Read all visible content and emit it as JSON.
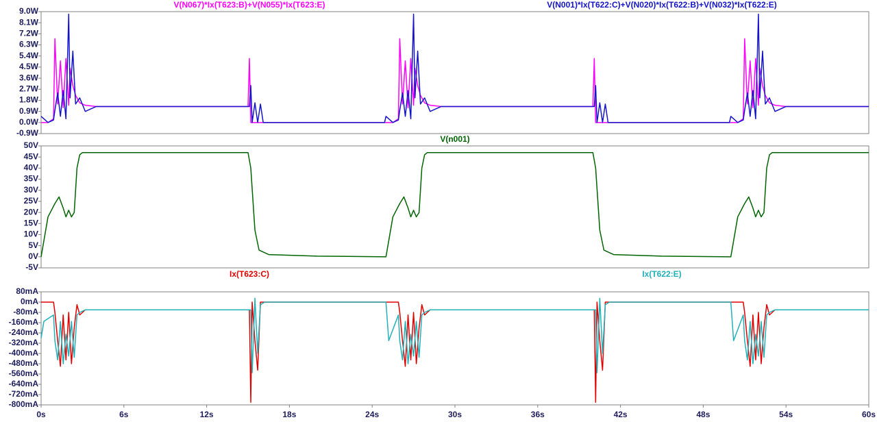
{
  "chart_data": [
    {
      "type": "line",
      "x": [
        0,
        0.5,
        0.9,
        1,
        1.2,
        1.4,
        1.6,
        1.8,
        2,
        2.1,
        2.3,
        2.5,
        2.8,
        3.2,
        4,
        15,
        15.1,
        15.2,
        15.3,
        15.5,
        15.7,
        15.9,
        16.1,
        24.9,
        25,
        25.5,
        25.9,
        26,
        26.2,
        26.4,
        26.6,
        26.8,
        27,
        27.1,
        27.3,
        27.5,
        27.8,
        28.2,
        29,
        40,
        40.1,
        40.2,
        40.3,
        40.5,
        40.7,
        40.9,
        41.1,
        49.9,
        50,
        50.5,
        50.9,
        51,
        51.2,
        51.4,
        51.6,
        51.8,
        52,
        52.1,
        52.3,
        52.5,
        52.8,
        53.2,
        54,
        60
      ],
      "series": [
        {
          "name": "V(N067)*Ix(T623:B)+V(N055)*Ix(T623:E)",
          "color": "#ff00ff",
          "values": [
            0,
            0,
            0.3,
            6.8,
            1.5,
            5.0,
            1.2,
            5.2,
            1.4,
            4.4,
            3.0,
            2.2,
            1.6,
            1.4,
            1.3,
            1.3,
            5.2,
            0,
            0,
            0,
            0,
            0,
            0,
            0,
            0,
            0,
            0.3,
            6.8,
            1.5,
            5.0,
            1.2,
            5.2,
            1.4,
            4.4,
            3.0,
            2.2,
            1.6,
            1.4,
            1.3,
            1.3,
            5.2,
            0,
            0,
            0,
            0,
            0,
            0,
            0,
            0,
            0,
            0.3,
            6.8,
            1.5,
            5.0,
            1.2,
            5.2,
            1.4,
            4.4,
            3.0,
            2.2,
            1.6,
            1.4,
            1.3,
            1.3
          ]
        },
        {
          "name": "V(N001)*Ix(T622:C)+V(N020)*Ix(T622:B)+V(N032)*Ix(T622:E)",
          "color": "#1414c8",
          "values": [
            0.5,
            0,
            0.2,
            1.0,
            2.4,
            0.5,
            2.6,
            0.3,
            8.8,
            2.0,
            5.8,
            1.5,
            2.0,
            0.9,
            1.3,
            1.3,
            1.3,
            3.0,
            0,
            1.6,
            0,
            1.5,
            0,
            0,
            0.5,
            0,
            0.2,
            1.0,
            2.4,
            0.5,
            2.6,
            0.3,
            8.8,
            2.0,
            5.8,
            1.5,
            2.0,
            0.9,
            1.3,
            1.3,
            1.3,
            3.0,
            0,
            1.6,
            0,
            1.5,
            0,
            0,
            0.5,
            0,
            0.2,
            1.0,
            2.4,
            0.5,
            2.6,
            0.3,
            8.8,
            2.0,
            5.8,
            1.5,
            2.0,
            0.9,
            1.3,
            1.3
          ]
        }
      ],
      "xlim": [
        0,
        60
      ],
      "ylim": [
        -0.9,
        9.0
      ],
      "yticks": [
        {
          "value": -0.9,
          "label": "-0.9W"
        },
        {
          "value": 0,
          "label": "0.0W"
        },
        {
          "value": 0.9,
          "label": "0.9W"
        },
        {
          "value": 1.8,
          "label": "1.8W"
        },
        {
          "value": 2.7,
          "label": "2.7W"
        },
        {
          "value": 3.6,
          "label": "3.6W"
        },
        {
          "value": 4.5,
          "label": "4.5W"
        },
        {
          "value": 5.4,
          "label": "5.4W"
        },
        {
          "value": 6.3,
          "label": "6.3W"
        },
        {
          "value": 7.2,
          "label": "7.2W"
        },
        {
          "value": 8.1,
          "label": "8.1W"
        },
        {
          "value": 9.0,
          "label": "9.0W"
        }
      ]
    },
    {
      "type": "line",
      "x": [
        0,
        0.5,
        1,
        1.3,
        1.6,
        1.8,
        2,
        2.2,
        2.4,
        2.6,
        2.8,
        3,
        15,
        15.2,
        15.5,
        15.8,
        16.5,
        20,
        25,
        25.5,
        26,
        26.3,
        26.6,
        26.8,
        27,
        27.2,
        27.4,
        27.6,
        27.8,
        28,
        40,
        40.2,
        40.5,
        40.8,
        41.5,
        45,
        50,
        50.5,
        51,
        51.3,
        51.6,
        51.8,
        52,
        52.2,
        52.4,
        52.6,
        52.8,
        53,
        60
      ],
      "series": [
        {
          "name": "V(n001)",
          "color": "#006400",
          "values": [
            0,
            18,
            24,
            27,
            22,
            18,
            21,
            18,
            20,
            40,
            46,
            47,
            47,
            40,
            12,
            3,
            1,
            0.3,
            0,
            18,
            24,
            27,
            22,
            18,
            21,
            18,
            20,
            40,
            46,
            47,
            47,
            40,
            12,
            3,
            1,
            0.3,
            0,
            18,
            24,
            27,
            22,
            18,
            21,
            18,
            20,
            40,
            46,
            47,
            47
          ]
        }
      ],
      "xlim": [
        0,
        60
      ],
      "ylim": [
        -5,
        50
      ],
      "yticks": [
        {
          "value": -5,
          "label": "-5V"
        },
        {
          "value": 0,
          "label": "0V"
        },
        {
          "value": 5,
          "label": "5V"
        },
        {
          "value": 10,
          "label": "10V"
        },
        {
          "value": 15,
          "label": "15V"
        },
        {
          "value": 20,
          "label": "20V"
        },
        {
          "value": 25,
          "label": "25V"
        },
        {
          "value": 30,
          "label": "30V"
        },
        {
          "value": 35,
          "label": "35V"
        },
        {
          "value": 40,
          "label": "40V"
        },
        {
          "value": 45,
          "label": "45V"
        },
        {
          "value": 50,
          "label": "50V"
        }
      ]
    },
    {
      "type": "line",
      "x": [
        0,
        0.2,
        0.9,
        1,
        1.2,
        1.4,
        1.6,
        1.8,
        2,
        2.2,
        2.4,
        2.6,
        2.8,
        3.2,
        4,
        15,
        15.1,
        15.2,
        15.3,
        15.5,
        15.7,
        15.9,
        16.2,
        24.9,
        25,
        25.2,
        25.9,
        26,
        26.2,
        26.4,
        26.6,
        26.8,
        27,
        27.2,
        27.4,
        27.6,
        27.8,
        28.2,
        29,
        40,
        40.1,
        40.2,
        40.3,
        40.5,
        40.7,
        40.9,
        41.2,
        49.9,
        50,
        50.2,
        50.9,
        51,
        51.2,
        51.4,
        51.6,
        51.8,
        52,
        52.2,
        52.4,
        52.6,
        52.8,
        53.2,
        54,
        60
      ],
      "series": [
        {
          "name": "Ix(T623:C)",
          "color": "#e00000",
          "values": [
            0,
            0,
            0,
            -80,
            -300,
            -500,
            -100,
            -450,
            -80,
            -480,
            -200,
            -20,
            -100,
            -60,
            -60,
            -60,
            -60,
            -780,
            0,
            -300,
            -530,
            0,
            0,
            0,
            0,
            0,
            0,
            -80,
            -300,
            -500,
            -100,
            -450,
            -80,
            -480,
            -200,
            -20,
            -100,
            -60,
            -60,
            -60,
            -60,
            -780,
            0,
            -300,
            -530,
            0,
            0,
            0,
            0,
            0,
            0,
            -80,
            -300,
            -500,
            -100,
            -450,
            -80,
            -480,
            -200,
            -20,
            -100,
            -60,
            -60,
            -60
          ]
        },
        {
          "name": "Ix(T622:E)",
          "color": "#20b0b8",
          "values": [
            -280,
            -150,
            -100,
            -300,
            -450,
            -150,
            -480,
            -250,
            -420,
            -150,
            -430,
            -100,
            -80,
            -60,
            -60,
            -60,
            -60,
            -60,
            -550,
            30,
            -400,
            -20,
            0,
            0,
            0,
            -300,
            -100,
            -300,
            -450,
            -150,
            -480,
            -250,
            -420,
            -150,
            -430,
            -100,
            -80,
            -60,
            -60,
            -60,
            -60,
            -60,
            -550,
            30,
            -400,
            -20,
            0,
            0,
            0,
            -300,
            -100,
            -300,
            -450,
            -150,
            -480,
            -250,
            -420,
            -150,
            -430,
            -100,
            -80,
            -60,
            -60,
            -60
          ]
        }
      ],
      "xlim": [
        0,
        60
      ],
      "ylim": [
        -800,
        80
      ],
      "yticks": [
        {
          "value": -800,
          "label": "-800mA"
        },
        {
          "value": -720,
          "label": "-720mA"
        },
        {
          "value": -640,
          "label": "-640mA"
        },
        {
          "value": -560,
          "label": "-560mA"
        },
        {
          "value": -480,
          "label": "-480mA"
        },
        {
          "value": -400,
          "label": "-400mA"
        },
        {
          "value": -320,
          "label": "-320mA"
        },
        {
          "value": -240,
          "label": "-240mA"
        },
        {
          "value": -160,
          "label": "-160mA"
        },
        {
          "value": -80,
          "label": "-80mA"
        },
        {
          "value": 0,
          "label": "0mA"
        },
        {
          "value": 80,
          "label": "80mA"
        }
      ],
      "xticks": [
        {
          "value": 0,
          "label": "0s"
        },
        {
          "value": 6,
          "label": "6s"
        },
        {
          "value": 12,
          "label": "12s"
        },
        {
          "value": 18,
          "label": "18s"
        },
        {
          "value": 24,
          "label": "24s"
        },
        {
          "value": 30,
          "label": "30s"
        },
        {
          "value": 36,
          "label": "36s"
        },
        {
          "value": 42,
          "label": "42s"
        },
        {
          "value": 48,
          "label": "48s"
        },
        {
          "value": 54,
          "label": "54s"
        },
        {
          "value": 60,
          "label": "60s"
        }
      ]
    }
  ]
}
